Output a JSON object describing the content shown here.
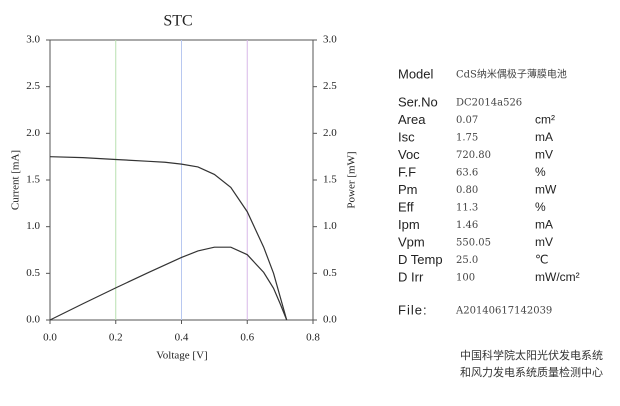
{
  "chart_data": {
    "type": "line",
    "title": "STC",
    "xlabel": "Voltage [V]",
    "ylabel": "Current [mA]",
    "y2label": "Power [mW]",
    "x": [
      0,
      0.1,
      0.2,
      0.3,
      0.35,
      0.4,
      0.45,
      0.5,
      0.55,
      0.6,
      0.65,
      0.68,
      0.7,
      0.72
    ],
    "series": [
      {
        "name": "Current",
        "color": "#333333",
        "values": [
          1.75,
          1.74,
          1.72,
          1.7,
          1.69,
          1.67,
          1.64,
          1.56,
          1.42,
          1.16,
          0.78,
          0.5,
          0.25,
          0
        ]
      },
      {
        "name": "Power",
        "color": "#333333",
        "axis": "y2",
        "values": [
          0,
          0.174,
          0.344,
          0.51,
          0.59,
          0.67,
          0.74,
          0.78,
          0.78,
          0.7,
          0.51,
          0.34,
          0.175,
          0
        ]
      }
    ],
    "xlim": [
      0,
      0.8
    ],
    "xticks": [
      {
        "value": 0,
        "label": "0.0"
      },
      {
        "value": 0.2,
        "label": "0.2"
      },
      {
        "value": 0.4,
        "label": "0.4"
      },
      {
        "value": 0.6,
        "label": "0.6"
      },
      {
        "value": 0.8,
        "label": "0.8"
      }
    ],
    "ylim": [
      0,
      3
    ],
    "yticks": [
      {
        "value": 0,
        "label": "0.0"
      },
      {
        "value": 0.5,
        "label": "0.5"
      },
      {
        "value": 1,
        "label": "1.0"
      },
      {
        "value": 1.5,
        "label": "1.5"
      },
      {
        "value": 2,
        "label": "2.0"
      },
      {
        "value": 2.5,
        "label": "2.5"
      },
      {
        "value": 3,
        "label": "3.0"
      }
    ],
    "y2lim": [
      0,
      3
    ],
    "y2ticks": [
      {
        "value": 0,
        "label": "0.0"
      },
      {
        "value": 0.5,
        "label": "0.5"
      },
      {
        "value": 1,
        "label": "1.0"
      },
      {
        "value": 1.5,
        "label": "1.5"
      },
      {
        "value": 2,
        "label": "2.0"
      },
      {
        "value": 2.5,
        "label": "2.5"
      },
      {
        "value": 3,
        "label": "3.0"
      }
    ],
    "grid": "x",
    "grid_colors": [
      "#b8e0b0",
      "#b8c8f0",
      "#d8b8e8"
    ]
  },
  "panel": {
    "model": [
      "Model",
      "CdS纳米偶极子薄膜电池"
    ],
    "rows": [
      [
        "Ser.No",
        "DC2014a526",
        ""
      ],
      [
        "Area",
        "0.07",
        "cm²"
      ],
      [
        "Isc",
        "1.75",
        "mA"
      ],
      [
        "Voc",
        "720.80",
        "mV"
      ],
      [
        "F.F",
        "63.6",
        "%"
      ],
      [
        "Pm",
        "0.80",
        "mW"
      ],
      [
        "Eff",
        "11.3",
        "%"
      ],
      [
        "Ipm",
        "1.46",
        "mA"
      ],
      [
        "Vpm",
        "550.05",
        "mV"
      ],
      [
        "D Temp",
        "25.0",
        "℃"
      ],
      [
        "D Irr",
        "100",
        "mW/cm²"
      ]
    ],
    "file": [
      "File:",
      "A20140617142039"
    ],
    "footer": [
      "中国科学院太阳光伏发电系统",
      "和风力发电系统质量检测中心"
    ]
  }
}
